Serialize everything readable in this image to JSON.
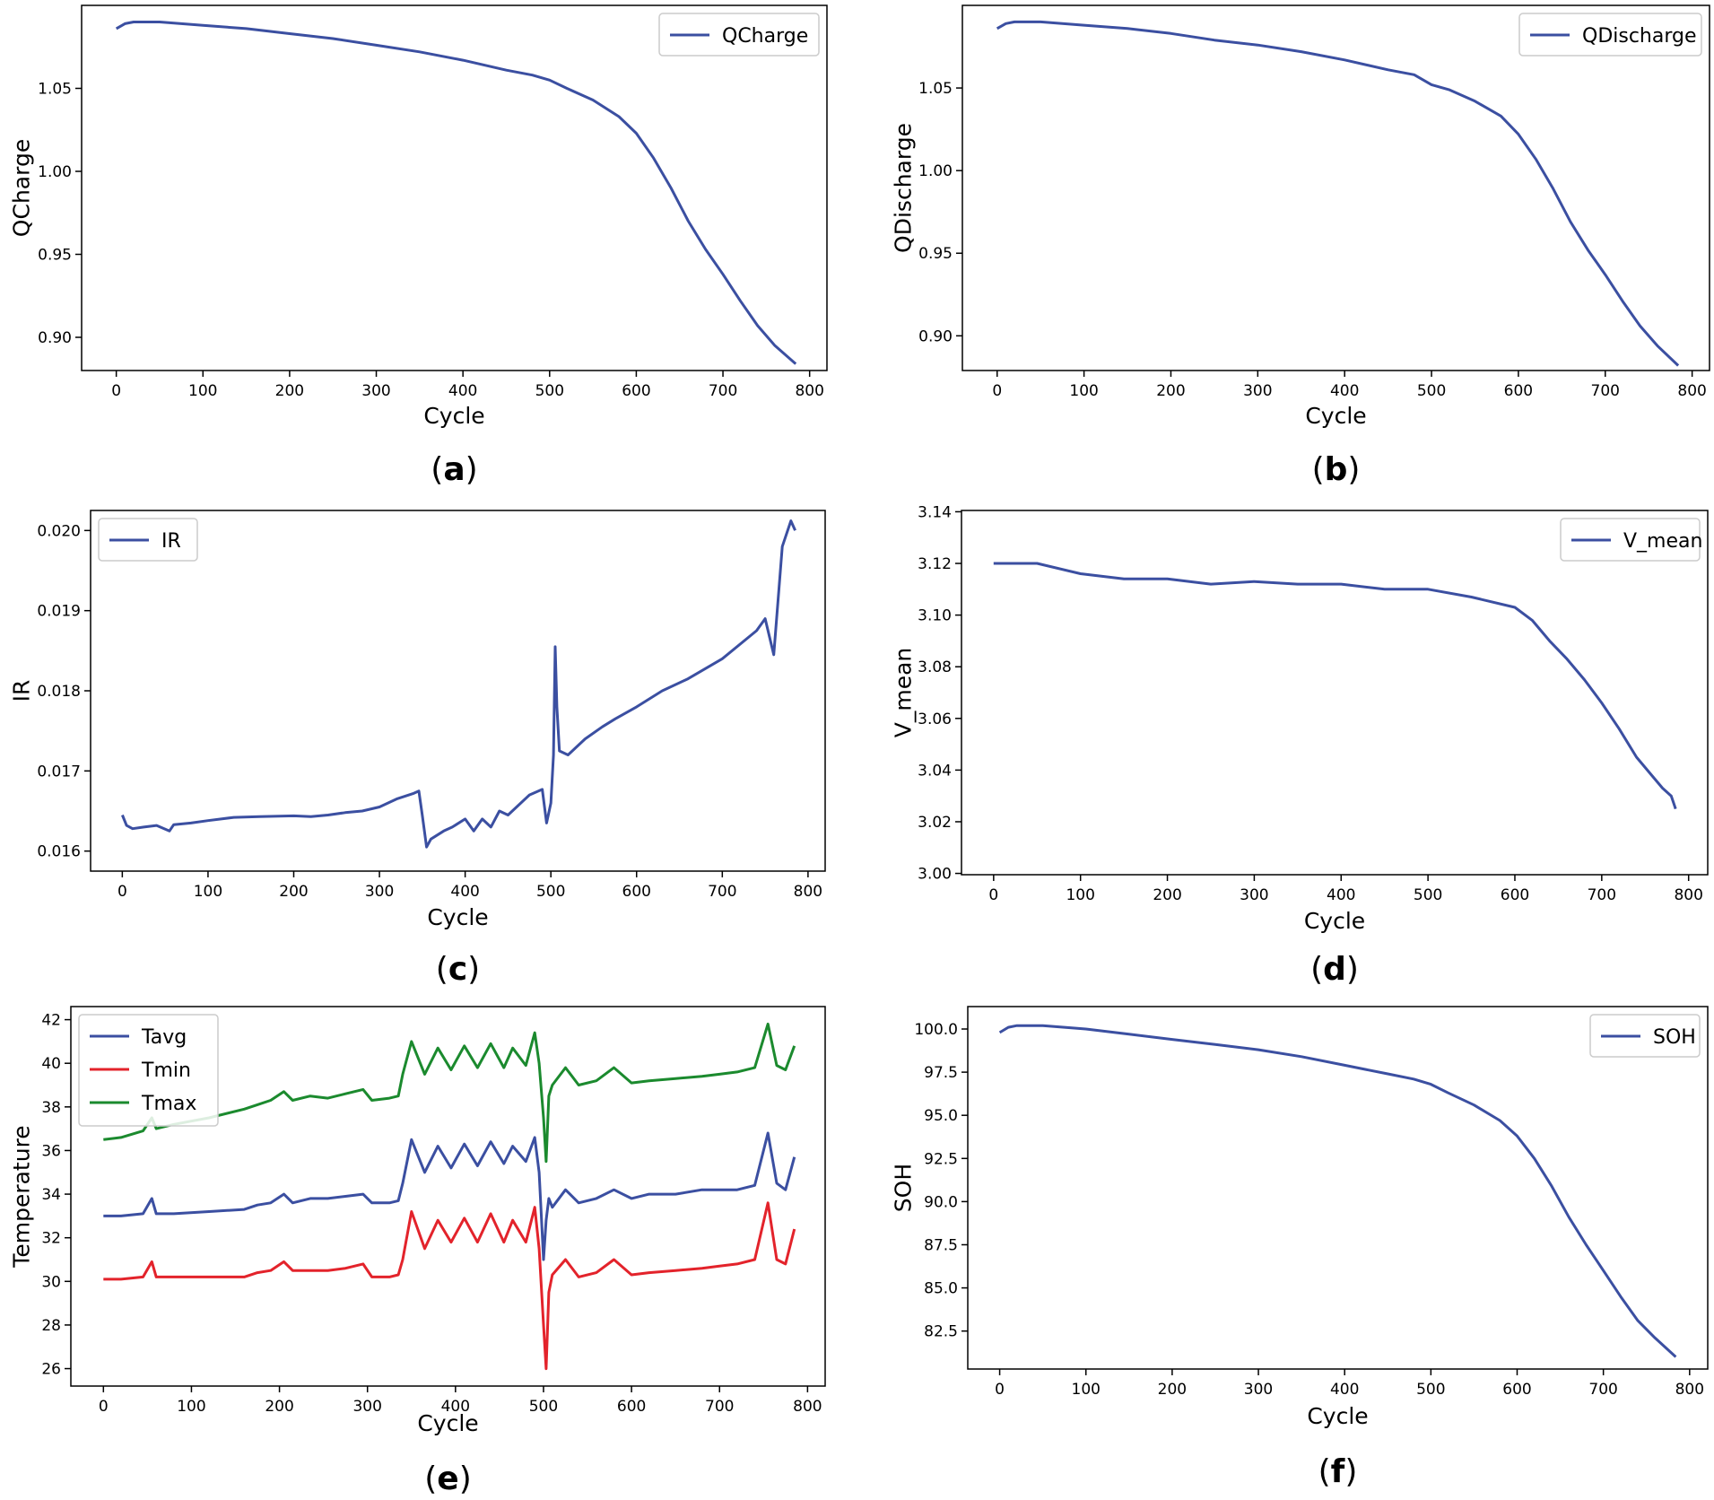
{
  "figure": {
    "colors": {
      "blue": "#3b4fa1",
      "red": "#e3232b",
      "green": "#1b8a2e",
      "axis": "#000000",
      "legend_border": "#cccccc"
    }
  },
  "chart_data": [
    {
      "id": "a",
      "type": "line",
      "caption": "a",
      "xlabel": "Cycle",
      "ylabel": "QCharge",
      "xlim": [
        -40,
        820
      ],
      "ylim": [
        0.88,
        1.1
      ],
      "xticks": [
        0,
        100,
        200,
        300,
        400,
        500,
        600,
        700,
        800
      ],
      "yticks": [
        0.9,
        0.95,
        1.0,
        1.05
      ],
      "ytick_labels": [
        "0.90",
        "0.95",
        "1.00",
        "1.05"
      ],
      "legend_position": "top-right",
      "grid": false,
      "series": [
        {
          "name": "QCharge",
          "color": "#3b4fa1",
          "x": [
            0,
            10,
            20,
            50,
            100,
            150,
            200,
            250,
            300,
            350,
            400,
            450,
            480,
            500,
            520,
            550,
            580,
            600,
            620,
            640,
            660,
            680,
            700,
            720,
            740,
            760,
            784
          ],
          "y": [
            1.086,
            1.089,
            1.09,
            1.09,
            1.088,
            1.086,
            1.083,
            1.08,
            1.076,
            1.072,
            1.067,
            1.061,
            1.058,
            1.055,
            1.05,
            1.043,
            1.033,
            1.023,
            1.008,
            0.99,
            0.97,
            0.953,
            0.938,
            0.922,
            0.907,
            0.895,
            0.884
          ]
        }
      ]
    },
    {
      "id": "b",
      "type": "line",
      "caption": "b",
      "xlabel": "Cycle",
      "ylabel": "QDischarge",
      "xlim": [
        -40,
        820
      ],
      "ylim": [
        0.879,
        1.1
      ],
      "xticks": [
        0,
        100,
        200,
        300,
        400,
        500,
        600,
        700,
        800
      ],
      "yticks": [
        0.9,
        0.95,
        1.0,
        1.05
      ],
      "ytick_labels": [
        "0.90",
        "0.95",
        "1.00",
        "1.05"
      ],
      "legend_position": "top-right",
      "grid": false,
      "series": [
        {
          "name": "QDischarge",
          "color": "#3b4fa1",
          "x": [
            0,
            10,
            20,
            50,
            100,
            150,
            200,
            250,
            300,
            350,
            400,
            450,
            480,
            500,
            520,
            550,
            580,
            600,
            620,
            640,
            660,
            680,
            700,
            720,
            740,
            760,
            784
          ],
          "y": [
            1.086,
            1.089,
            1.09,
            1.09,
            1.088,
            1.086,
            1.083,
            1.079,
            1.076,
            1.072,
            1.067,
            1.061,
            1.058,
            1.052,
            1.049,
            1.042,
            1.033,
            1.022,
            1.007,
            0.989,
            0.969,
            0.952,
            0.937,
            0.921,
            0.906,
            0.894,
            0.882
          ]
        }
      ]
    },
    {
      "id": "c",
      "type": "line",
      "caption": "c",
      "xlabel": "Cycle",
      "ylabel": "IR",
      "xlim": [
        -37,
        820
      ],
      "ylim": [
        0.01575,
        0.02025
      ],
      "xticks": [
        0,
        100,
        200,
        300,
        400,
        500,
        600,
        700,
        800
      ],
      "yticks": [
        0.016,
        0.017,
        0.018,
        0.019,
        0.02
      ],
      "ytick_labels": [
        "0.016",
        "0.017",
        "0.018",
        "0.019",
        "0.020"
      ],
      "legend_position": "top-left",
      "grid": false,
      "series": [
        {
          "name": "IR",
          "color": "#3b4fa1",
          "x": [
            0,
            5,
            12,
            25,
            40,
            55,
            60,
            80,
            100,
            130,
            160,
            200,
            220,
            240,
            260,
            280,
            300,
            320,
            340,
            346,
            350,
            355,
            360,
            375,
            385,
            400,
            410,
            420,
            430,
            440,
            450,
            460,
            475,
            490,
            495,
            500,
            503,
            505,
            507,
            510,
            520,
            530,
            540,
            560,
            575,
            600,
            630,
            660,
            700,
            740,
            750,
            760,
            770,
            780,
            785
          ],
          "y": [
            0.01645,
            0.01632,
            0.01628,
            0.0163,
            0.01632,
            0.01625,
            0.01633,
            0.01635,
            0.01638,
            0.01642,
            0.01643,
            0.01644,
            0.01643,
            0.01645,
            0.01648,
            0.0165,
            0.01655,
            0.01665,
            0.01672,
            0.01675,
            0.01645,
            0.01605,
            0.01615,
            0.01625,
            0.0163,
            0.0164,
            0.01625,
            0.0164,
            0.0163,
            0.0165,
            0.01645,
            0.01655,
            0.0167,
            0.01677,
            0.01635,
            0.0166,
            0.0172,
            0.01855,
            0.0178,
            0.01725,
            0.0172,
            0.0173,
            0.0174,
            0.01755,
            0.01765,
            0.0178,
            0.018,
            0.01815,
            0.0184,
            0.01875,
            0.0189,
            0.01845,
            0.0198,
            0.02012,
            0.02
          ]
        }
      ]
    },
    {
      "id": "d",
      "type": "line",
      "caption": "d",
      "xlabel": "Cycle",
      "ylabel": "V_mean",
      "xlim": [
        -37,
        822
      ],
      "ylim": [
        2.9995,
        3.1405
      ],
      "xticks": [
        0,
        100,
        200,
        300,
        400,
        500,
        600,
        700,
        800
      ],
      "yticks": [
        3.0,
        3.02,
        3.04,
        3.06,
        3.08,
        3.1,
        3.12,
        3.14
      ],
      "ytick_labels": [
        "3.00",
        "3.02",
        "3.04",
        "3.06",
        "3.08",
        "3.10",
        "3.12",
        "3.14"
      ],
      "legend_position": "top-right",
      "grid": false,
      "series": [
        {
          "name": "V_mean",
          "color": "#3b4fa1",
          "x": [
            0,
            50,
            100,
            150,
            200,
            250,
            300,
            350,
            400,
            450,
            500,
            550,
            600,
            620,
            640,
            660,
            680,
            700,
            720,
            740,
            760,
            770,
            780,
            785
          ],
          "y": [
            3.12,
            3.12,
            3.116,
            3.114,
            3.114,
            3.112,
            3.113,
            3.112,
            3.112,
            3.11,
            3.11,
            3.107,
            3.103,
            3.098,
            3.09,
            3.083,
            3.075,
            3.066,
            3.056,
            3.045,
            3.037,
            3.033,
            3.03,
            3.025
          ]
        }
      ]
    },
    {
      "id": "e",
      "type": "line",
      "caption": "e",
      "xlabel": "Cycle",
      "ylabel": "Temperature",
      "xlim": [
        -37,
        820
      ],
      "ylim": [
        25.2,
        42.6
      ],
      "xticks": [
        0,
        100,
        200,
        300,
        400,
        500,
        600,
        700,
        800
      ],
      "yticks": [
        26,
        28,
        30,
        32,
        34,
        36,
        38,
        40,
        42
      ],
      "ytick_labels": [
        "26",
        "28",
        "30",
        "32",
        "34",
        "36",
        "38",
        "40",
        "42"
      ],
      "legend_position": "top-left",
      "grid": false,
      "series": [
        {
          "name": "Tavg",
          "color": "#3b4fa1",
          "x": [
            0,
            20,
            45,
            55,
            60,
            80,
            120,
            160,
            175,
            190,
            205,
            215,
            235,
            255,
            275,
            295,
            305,
            325,
            335,
            340,
            350,
            365,
            380,
            395,
            410,
            425,
            440,
            455,
            465,
            480,
            490,
            495,
            500,
            503,
            506,
            510,
            525,
            540,
            560,
            580,
            600,
            620,
            650,
            680,
            700,
            720,
            740,
            755,
            765,
            775,
            785
          ],
          "y": [
            33.0,
            33.0,
            33.1,
            33.8,
            33.1,
            33.1,
            33.2,
            33.3,
            33.5,
            33.6,
            34.0,
            33.6,
            33.8,
            33.8,
            33.9,
            34.0,
            33.6,
            33.6,
            33.7,
            34.5,
            36.5,
            35.0,
            36.2,
            35.2,
            36.3,
            35.3,
            36.4,
            35.4,
            36.2,
            35.5,
            36.6,
            35.0,
            31.0,
            32.8,
            33.8,
            33.4,
            34.2,
            33.6,
            33.8,
            34.2,
            33.8,
            34.0,
            34.0,
            34.2,
            34.2,
            34.2,
            34.4,
            36.8,
            34.5,
            34.2,
            35.7
          ]
        },
        {
          "name": "Tmin",
          "color": "#e3232b",
          "x": [
            0,
            20,
            45,
            55,
            60,
            80,
            120,
            160,
            175,
            190,
            205,
            215,
            235,
            255,
            275,
            295,
            305,
            325,
            335,
            340,
            350,
            365,
            380,
            395,
            410,
            425,
            440,
            455,
            465,
            480,
            490,
            495,
            500,
            503,
            506,
            510,
            525,
            540,
            560,
            580,
            600,
            620,
            650,
            680,
            700,
            720,
            740,
            755,
            765,
            775,
            785
          ],
          "y": [
            30.1,
            30.1,
            30.2,
            30.9,
            30.2,
            30.2,
            30.2,
            30.2,
            30.4,
            30.5,
            30.9,
            30.5,
            30.5,
            30.5,
            30.6,
            30.8,
            30.2,
            30.2,
            30.3,
            31.0,
            33.2,
            31.5,
            32.8,
            31.8,
            32.9,
            31.8,
            33.1,
            31.8,
            32.8,
            31.8,
            33.4,
            31.5,
            28.0,
            26.0,
            29.5,
            30.3,
            31.0,
            30.2,
            30.4,
            31.0,
            30.3,
            30.4,
            30.5,
            30.6,
            30.7,
            30.8,
            31.0,
            33.6,
            31.0,
            30.8,
            32.4
          ]
        },
        {
          "name": "Tmax",
          "color": "#1b8a2e",
          "x": [
            0,
            20,
            45,
            55,
            60,
            80,
            120,
            160,
            175,
            190,
            205,
            215,
            235,
            255,
            275,
            295,
            305,
            325,
            335,
            340,
            350,
            365,
            380,
            395,
            410,
            425,
            440,
            455,
            465,
            480,
            490,
            495,
            500,
            503,
            506,
            510,
            525,
            540,
            560,
            580,
            600,
            620,
            650,
            680,
            700,
            720,
            740,
            755,
            765,
            775,
            785
          ],
          "y": [
            36.5,
            36.6,
            36.9,
            37.5,
            37.0,
            37.2,
            37.5,
            37.9,
            38.1,
            38.3,
            38.7,
            38.3,
            38.5,
            38.4,
            38.6,
            38.8,
            38.3,
            38.4,
            38.5,
            39.5,
            41.0,
            39.5,
            40.7,
            39.7,
            40.8,
            39.8,
            40.9,
            39.8,
            40.7,
            39.9,
            41.4,
            40.0,
            37.5,
            35.5,
            38.5,
            39.0,
            39.8,
            39.0,
            39.2,
            39.8,
            39.1,
            39.2,
            39.3,
            39.4,
            39.5,
            39.6,
            39.8,
            41.8,
            39.9,
            39.7,
            40.8
          ]
        }
      ]
    },
    {
      "id": "f",
      "type": "line",
      "caption": "f",
      "xlabel": "Cycle",
      "ylabel": "SOH",
      "xlim": [
        -37,
        821
      ],
      "ylim": [
        80.3,
        101.3
      ],
      "xticks": [
        0,
        100,
        200,
        300,
        400,
        500,
        600,
        700,
        800
      ],
      "yticks": [
        82.5,
        85.0,
        87.5,
        90.0,
        92.5,
        95.0,
        97.5,
        100.0
      ],
      "ytick_labels": [
        "82.5",
        "85.0",
        "87.5",
        "90.0",
        "92.5",
        "95.0",
        "97.5",
        "100.0"
      ],
      "legend_position": "top-right",
      "grid": false,
      "series": [
        {
          "name": "SOH",
          "color": "#3b4fa1",
          "x": [
            0,
            10,
            20,
            50,
            100,
            150,
            200,
            250,
            300,
            350,
            400,
            450,
            480,
            500,
            520,
            550,
            580,
            600,
            620,
            640,
            660,
            680,
            700,
            720,
            740,
            760,
            784
          ],
          "y": [
            99.8,
            100.1,
            100.2,
            100.2,
            100.0,
            99.7,
            99.4,
            99.1,
            98.8,
            98.4,
            97.9,
            97.4,
            97.1,
            96.8,
            96.3,
            95.6,
            94.7,
            93.8,
            92.5,
            90.9,
            89.1,
            87.5,
            86.0,
            84.5,
            83.1,
            82.1,
            81.0
          ]
        }
      ]
    }
  ]
}
